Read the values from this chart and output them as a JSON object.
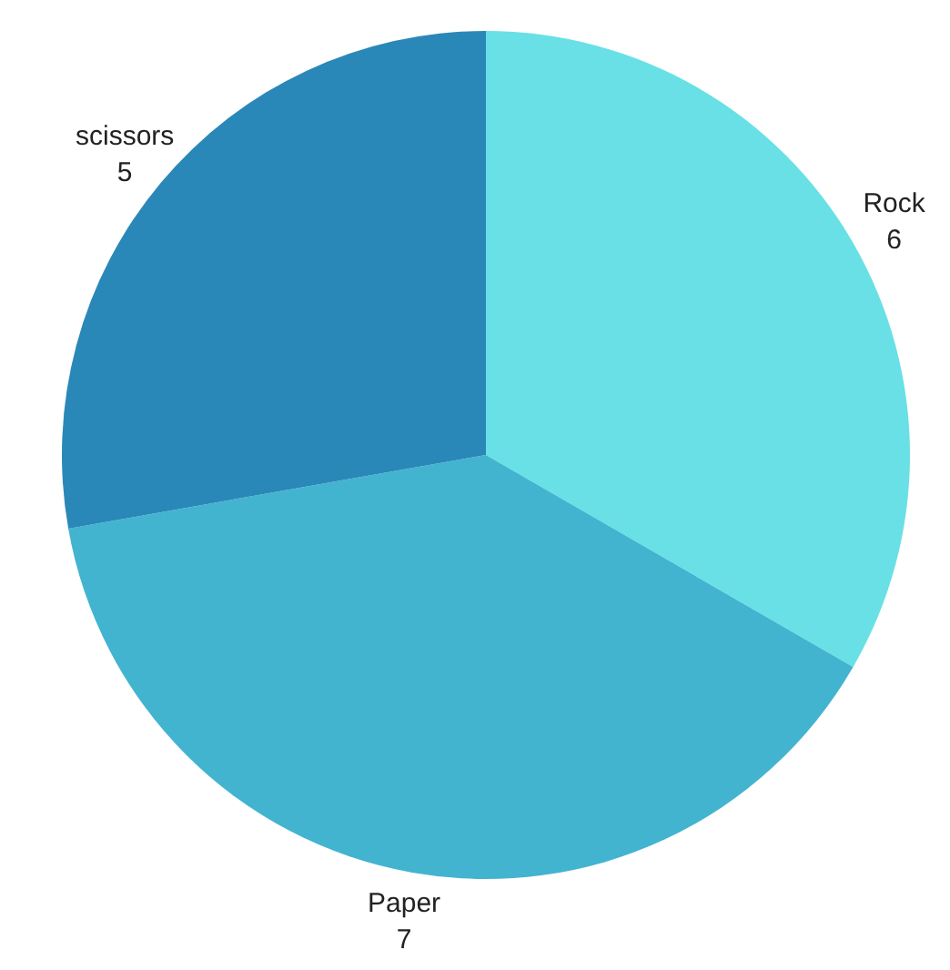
{
  "chart_data": {
    "type": "pie",
    "categories": [
      "Rock",
      "Paper",
      "scissors"
    ],
    "values": [
      6,
      7,
      5
    ],
    "colors": [
      "#68e0e6",
      "#42b4d0",
      "#2a88b8"
    ],
    "data_labels": true
  }
}
